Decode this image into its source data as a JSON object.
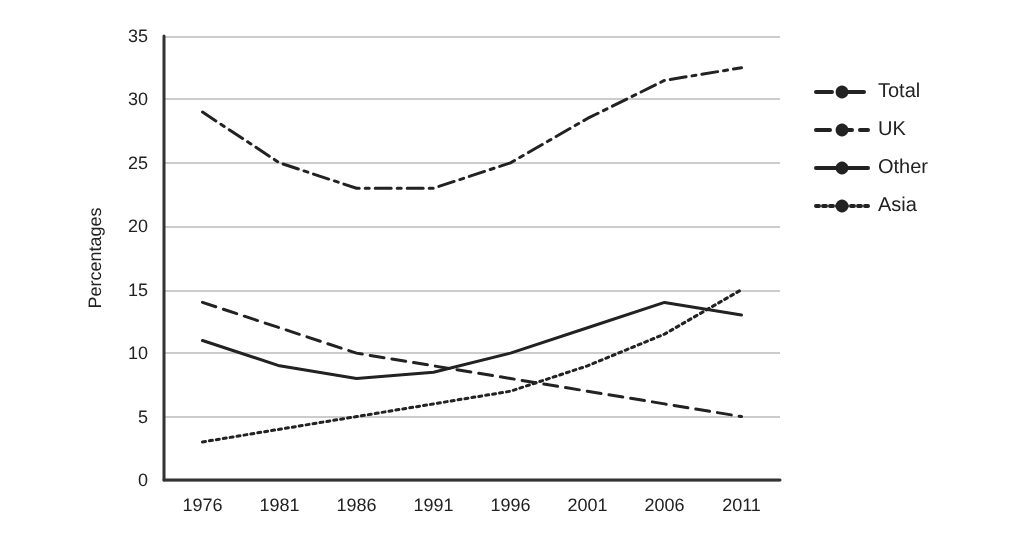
{
  "chart_data": {
    "type": "line",
    "ylabel": "Percentages",
    "categories": [
      "1976",
      "1981",
      "1986",
      "1991",
      "1996",
      "2001",
      "2006",
      "2011"
    ],
    "series": [
      {
        "name": "Total",
        "color": "#222222",
        "line_style": "dashdot",
        "values": [
          29,
          25,
          23,
          23,
          25,
          28.5,
          31.5,
          32.5
        ]
      },
      {
        "name": "UK",
        "color": "#222222",
        "line_style": "dashed",
        "values": [
          14,
          12,
          10,
          9,
          8,
          7,
          6,
          5
        ]
      },
      {
        "name": "Other",
        "color": "#222222",
        "line_style": "solid",
        "values": [
          11,
          9,
          8,
          8.5,
          10,
          12,
          14,
          13
        ]
      },
      {
        "name": "Asia",
        "color": "#222222",
        "line_style": "dotted",
        "values": [
          3,
          4,
          5,
          6,
          7,
          9,
          11.5,
          15
        ]
      }
    ],
    "ylim": [
      0,
      35
    ],
    "yticks": [
      0,
      5,
      10,
      15,
      20,
      25,
      30,
      35
    ],
    "grid": "y",
    "legend": "top right",
    "marker": "none"
  }
}
